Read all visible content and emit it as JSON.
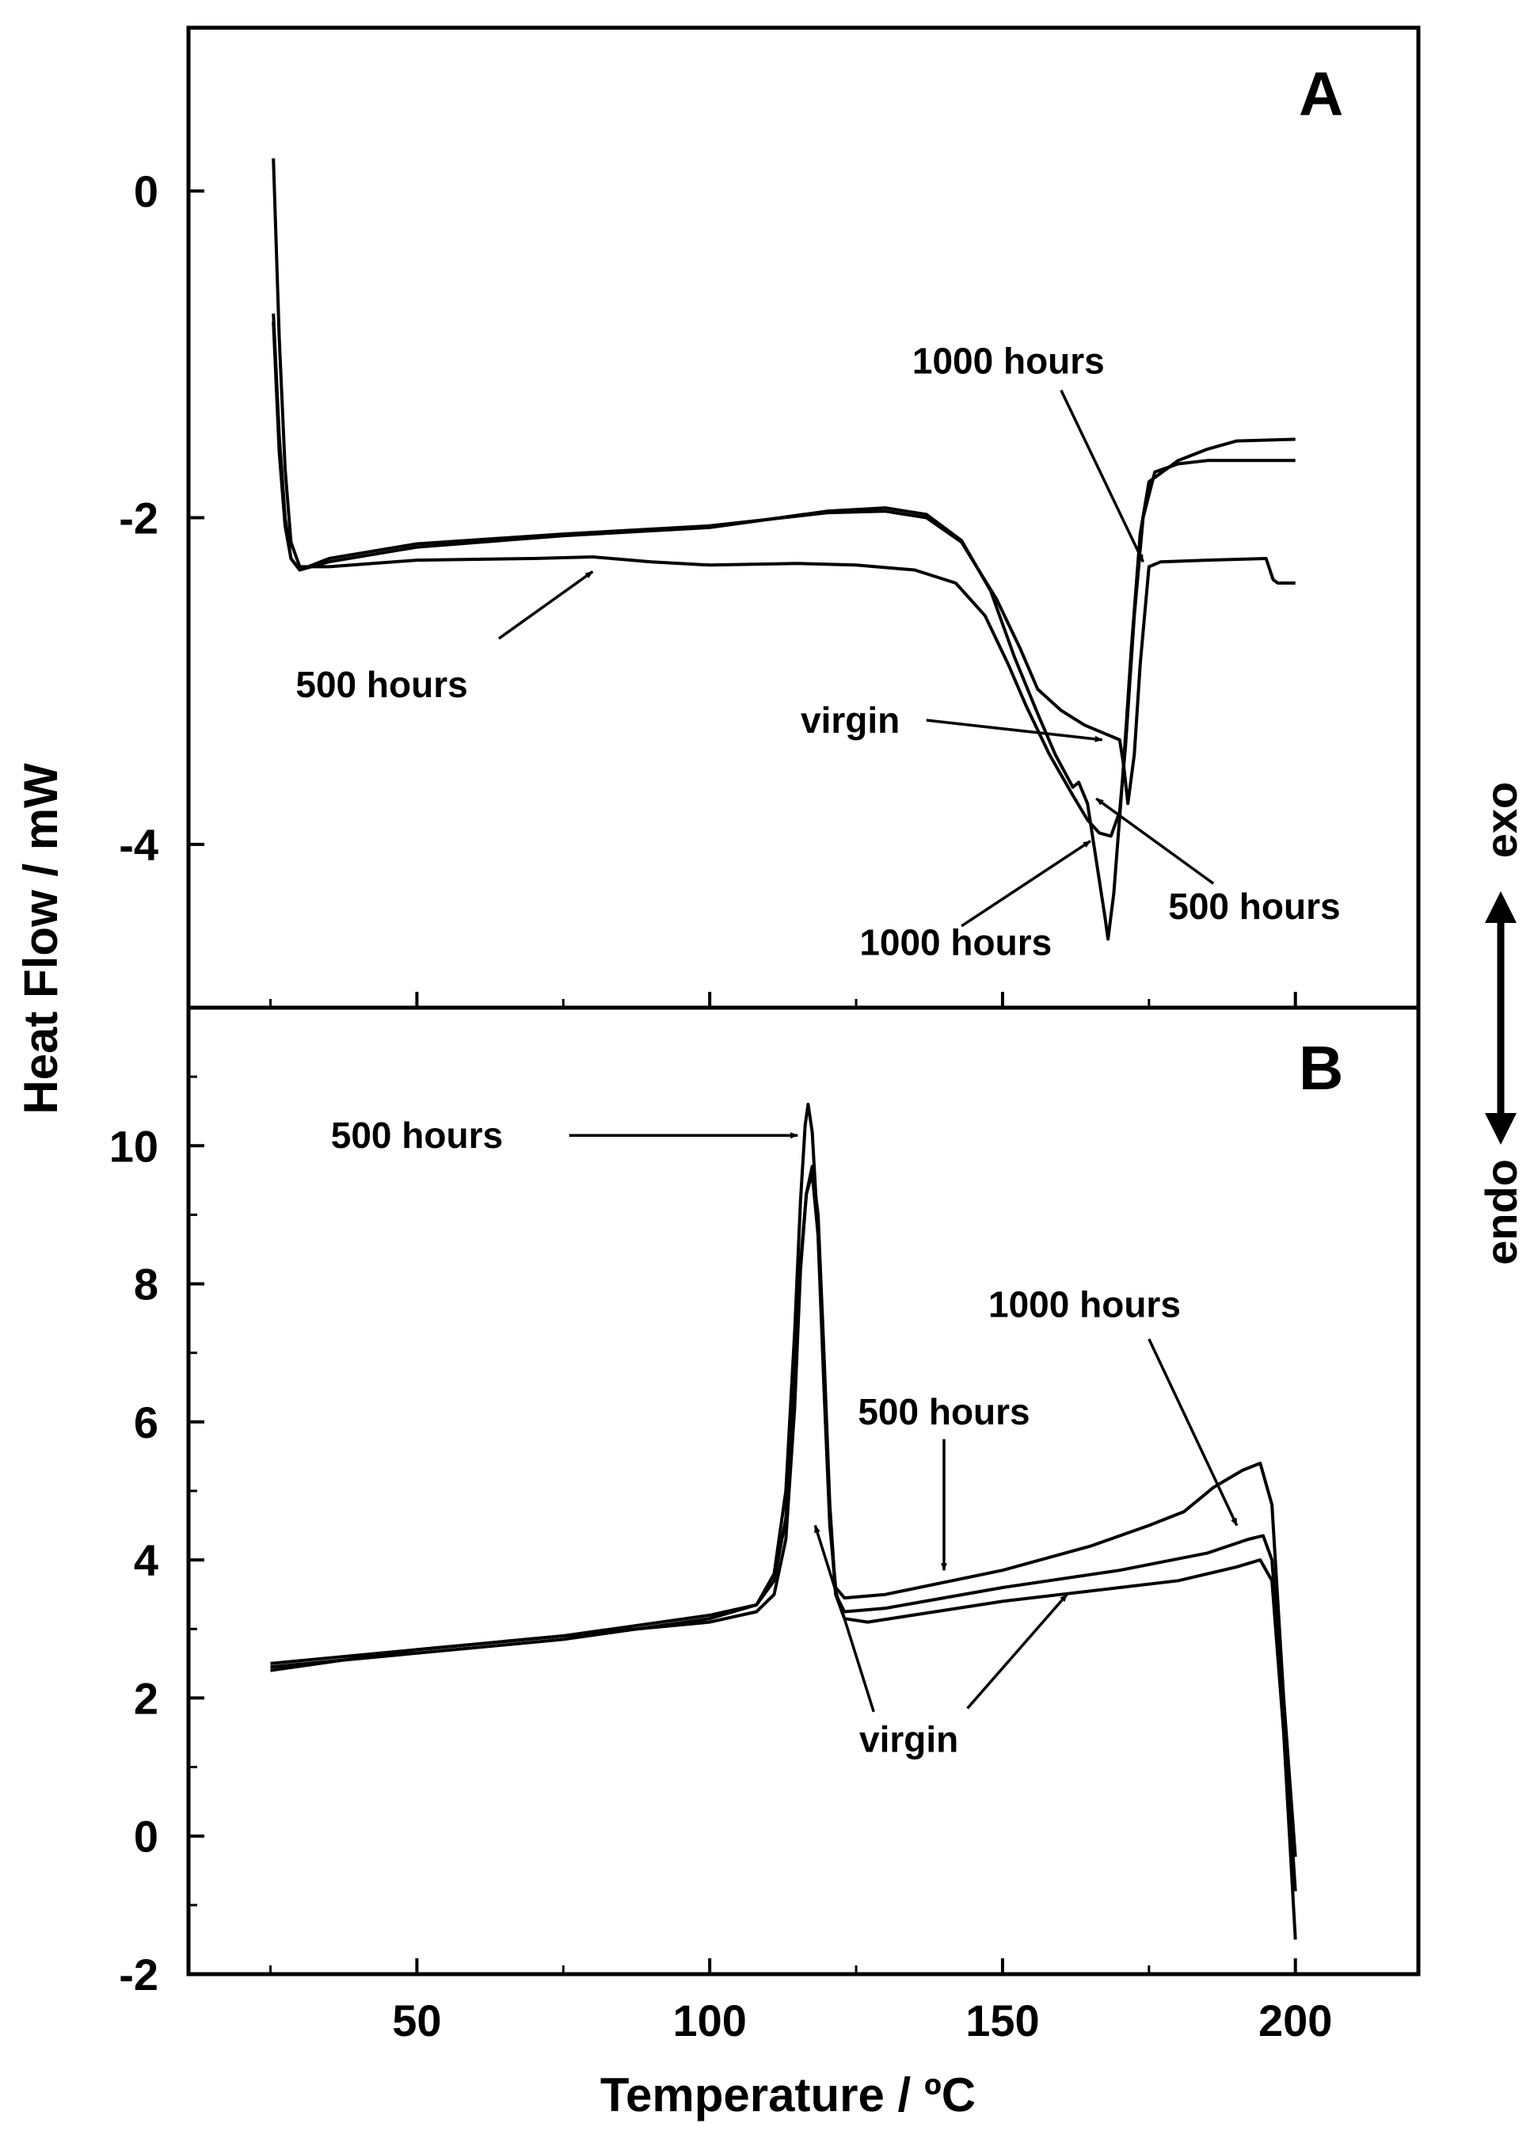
{
  "chart_data": [
    {
      "panel": "A",
      "type": "line",
      "panel_label": "A",
      "xlabel": "Temperature / ºC",
      "ylabel": "Heat Flow / mW",
      "xlim": [
        11,
        221
      ],
      "ylim": [
        -5.0,
        1.0
      ],
      "x_ticks": [
        50,
        100,
        150,
        200
      ],
      "y_ticks": [
        0,
        -2,
        -4
      ],
      "y_tick_labels": [
        "0",
        "-2",
        "-4"
      ],
      "series": [
        {
          "name": "virgin",
          "points": [
            [
              25.5,
              -0.8
            ],
            [
              26.5,
              -1.6
            ],
            [
              27.5,
              -2.05
            ],
            [
              28.5,
              -2.25
            ],
            [
              30,
              -2.32
            ],
            [
              35,
              -2.27
            ],
            [
              50,
              -2.18
            ],
            [
              75,
              -2.11
            ],
            [
              100,
              -2.06
            ],
            [
              110,
              -2.01
            ],
            [
              120,
              -1.97
            ],
            [
              130,
              -1.96
            ],
            [
              137,
              -2.0
            ],
            [
              143,
              -2.15
            ],
            [
              149,
              -2.5
            ],
            [
              153,
              -2.8
            ],
            [
              156,
              -3.05
            ],
            [
              160,
              -3.18
            ],
            [
              164,
              -3.27
            ],
            [
              168,
              -3.33
            ],
            [
              170,
              -3.36
            ],
            [
              170.7,
              -3.52
            ],
            [
              171.4,
              -3.75
            ],
            [
              172.5,
              -3.45
            ],
            [
              173.5,
              -2.9
            ],
            [
              175,
              -2.3
            ],
            [
              177,
              -2.27
            ],
            [
              185,
              -2.26
            ],
            [
              195,
              -2.25
            ],
            [
              196.2,
              -2.38
            ],
            [
              197,
              -2.4
            ],
            [
              200,
              -2.4
            ]
          ]
        },
        {
          "name": "500 hours",
          "points": [
            [
              25.5,
              0.2
            ],
            [
              26.5,
              -0.9
            ],
            [
              27.5,
              -1.7
            ],
            [
              28.5,
              -2.15
            ],
            [
              30,
              -2.3
            ],
            [
              35,
              -2.3
            ],
            [
              50,
              -2.26
            ],
            [
              70,
              -2.25
            ],
            [
              80,
              -2.24
            ],
            [
              90,
              -2.27
            ],
            [
              100,
              -2.29
            ],
            [
              115,
              -2.28
            ],
            [
              125,
              -2.29
            ],
            [
              135,
              -2.32
            ],
            [
              142,
              -2.4
            ],
            [
              147,
              -2.6
            ],
            [
              151,
              -2.9
            ],
            [
              154,
              -3.15
            ],
            [
              158,
              -3.45
            ],
            [
              162,
              -3.7
            ],
            [
              164.5,
              -3.85
            ],
            [
              166.5,
              -3.93
            ],
            [
              168.5,
              -3.95
            ],
            [
              170,
              -3.8
            ],
            [
              171,
              -3.4
            ],
            [
              172.5,
              -2.6
            ],
            [
              174,
              -2.0
            ],
            [
              176,
              -1.72
            ],
            [
              180,
              -1.67
            ],
            [
              185,
              -1.65
            ],
            [
              193,
              -1.65
            ],
            [
              200,
              -1.65
            ]
          ]
        },
        {
          "name": "1000 hours",
          "points": [
            [
              25.5,
              -0.75
            ],
            [
              26.5,
              -1.5
            ],
            [
              27.5,
              -2.0
            ],
            [
              28.5,
              -2.25
            ],
            [
              30,
              -2.32
            ],
            [
              35,
              -2.25
            ],
            [
              50,
              -2.16
            ],
            [
              75,
              -2.1
            ],
            [
              100,
              -2.05
            ],
            [
              110,
              -2.01
            ],
            [
              120,
              -1.96
            ],
            [
              130,
              -1.94
            ],
            [
              137,
              -1.98
            ],
            [
              143,
              -2.14
            ],
            [
              148,
              -2.45
            ],
            [
              152,
              -2.85
            ],
            [
              156,
              -3.2
            ],
            [
              159,
              -3.45
            ],
            [
              162,
              -3.65
            ],
            [
              163,
              -3.62
            ],
            [
              164.5,
              -3.75
            ],
            [
              166,
              -4.1
            ],
            [
              167.5,
              -4.45
            ],
            [
              168,
              -4.58
            ],
            [
              169,
              -4.3
            ],
            [
              170.5,
              -3.6
            ],
            [
              172,
              -2.8
            ],
            [
              173.5,
              -2.1
            ],
            [
              175,
              -1.78
            ],
            [
              180,
              -1.65
            ],
            [
              185,
              -1.58
            ],
            [
              190,
              -1.53
            ],
            [
              200,
              -1.52
            ]
          ]
        }
      ],
      "annotations": [
        {
          "text": "1000 hours",
          "x": 151,
          "y": -1.04,
          "arrow_from": [
            160,
            -1.22
          ],
          "arrow_to": [
            174,
            -2.27
          ]
        },
        {
          "text": "500 hours",
          "x": 44,
          "y": -3.02,
          "arrow_from": [
            64,
            -2.74
          ],
          "arrow_to": [
            80,
            -2.33
          ]
        },
        {
          "text": "virgin",
          "x": 124,
          "y": -3.24,
          "arrow_from": [
            137,
            -3.24
          ],
          "arrow_to": [
            167,
            -3.36
          ]
        },
        {
          "text": "500 hours",
          "x": 193,
          "y": -4.38,
          "arrow_from": [
            186,
            -4.24
          ],
          "arrow_to": [
            166,
            -3.72
          ]
        },
        {
          "text": "1000 hours",
          "x": 142,
          "y": -4.6,
          "arrow_from": [
            143,
            -4.5
          ],
          "arrow_to": [
            165,
            -3.98
          ]
        }
      ]
    },
    {
      "panel": "B",
      "type": "line",
      "panel_label": "B",
      "xlabel": "Temperature / ºC",
      "ylabel": "Heat Flow / mW",
      "xlim": [
        11,
        221
      ],
      "ylim": [
        -2.0,
        12.0
      ],
      "x_ticks": [
        50,
        100,
        150,
        200
      ],
      "x_tick_labels": [
        "50",
        "100",
        "150",
        "200"
      ],
      "y_ticks": [
        10,
        8,
        6,
        4,
        2,
        0,
        -2
      ],
      "y_tick_labels": [
        "10",
        "8",
        "6",
        "4",
        "2",
        "0",
        "-2"
      ],
      "series": [
        {
          "name": "virgin",
          "points": [
            [
              25,
              2.5
            ],
            [
              50,
              2.7
            ],
            [
              75,
              2.9
            ],
            [
              100,
              3.1
            ],
            [
              108,
              3.25
            ],
            [
              111,
              3.5
            ],
            [
              113,
              4.3
            ],
            [
              114.5,
              6.2
            ],
            [
              115.5,
              8.2
            ],
            [
              116.5,
              9.3
            ],
            [
              117.5,
              9.7
            ],
            [
              118.5,
              9.0
            ],
            [
              119.5,
              7.0
            ],
            [
              120.5,
              4.8
            ],
            [
              121.5,
              3.5
            ],
            [
              123,
              3.15
            ],
            [
              127,
              3.1
            ],
            [
              150,
              3.4
            ],
            [
              170,
              3.6
            ],
            [
              180,
              3.7
            ],
            [
              190,
              3.9
            ],
            [
              194,
              4.0
            ],
            [
              196,
              3.7
            ],
            [
              198,
              1.5
            ],
            [
              200,
              -1.5
            ]
          ]
        },
        {
          "name": "500 hours",
          "points": [
            [
              25,
              2.45
            ],
            [
              50,
              2.65
            ],
            [
              75,
              2.85
            ],
            [
              100,
              3.15
            ],
            [
              108,
              3.35
            ],
            [
              111,
              3.8
            ],
            [
              113,
              5.0
            ],
            [
              114.5,
              7.3
            ],
            [
              115.5,
              9.2
            ],
            [
              116.3,
              10.3
            ],
            [
              116.8,
              10.6
            ],
            [
              117.5,
              10.2
            ],
            [
              118.5,
              8.7
            ],
            [
              119.5,
              6.5
            ],
            [
              120.5,
              4.5
            ],
            [
              121.5,
              3.6
            ],
            [
              123,
              3.45
            ],
            [
              130,
              3.5
            ],
            [
              150,
              3.85
            ],
            [
              165,
              4.2
            ],
            [
              175,
              4.5
            ],
            [
              181,
              4.7
            ],
            [
              186,
              5.05
            ],
            [
              191,
              5.3
            ],
            [
              194,
              5.4
            ],
            [
              196,
              4.8
            ],
            [
              198,
              2.0
            ],
            [
              200,
              -0.3
            ]
          ]
        },
        {
          "name": "1000 hours",
          "points": [
            [
              25,
              2.4
            ],
            [
              50,
              2.7
            ],
            [
              75,
              2.9
            ],
            [
              100,
              3.2
            ],
            [
              108,
              3.35
            ],
            [
              111,
              3.7
            ],
            [
              113,
              4.6
            ],
            [
              114.5,
              6.5
            ],
            [
              115.5,
              8.3
            ],
            [
              116.5,
              9.3
            ],
            [
              117.5,
              9.6
            ],
            [
              118.5,
              8.7
            ],
            [
              119.5,
              6.7
            ],
            [
              120.5,
              4.6
            ],
            [
              121.5,
              3.5
            ],
            [
              123,
              3.25
            ],
            [
              130,
              3.3
            ],
            [
              150,
              3.6
            ],
            [
              170,
              3.85
            ],
            [
              185,
              4.1
            ],
            [
              192,
              4.3
            ],
            [
              194.5,
              4.35
            ],
            [
              196,
              4.0
            ],
            [
              198,
              1.8
            ],
            [
              200,
              -0.8
            ]
          ]
        }
      ],
      "annotations": [
        {
          "text": "500 hours",
          "x": 50,
          "y": 10.15,
          "arrow_from": [
            76,
            10.15
          ],
          "arrow_to": [
            115,
            10.15
          ]
        },
        {
          "text": "500 hours",
          "x": 140,
          "y": 6.15,
          "arrow_from": [
            140,
            5.75
          ],
          "arrow_to": [
            140,
            3.85
          ]
        },
        {
          "text": "1000 hours",
          "x": 164,
          "y": 7.7,
          "arrow_from": [
            175,
            7.2
          ],
          "arrow_to": [
            190,
            4.5
          ]
        },
        {
          "text": "virgin",
          "x": 134,
          "y": 1.4,
          "arrow_from": [
            128,
            1.8
          ],
          "arrow_to": [
            118,
            4.5
          ]
        },
        {
          "text": "",
          "x": 0,
          "y": 0,
          "arrow_from": [
            144,
            1.85
          ],
          "arrow_to": [
            161,
            3.5
          ]
        }
      ]
    }
  ],
  "side_labels": {
    "exo": "exo",
    "endo": "endo"
  }
}
